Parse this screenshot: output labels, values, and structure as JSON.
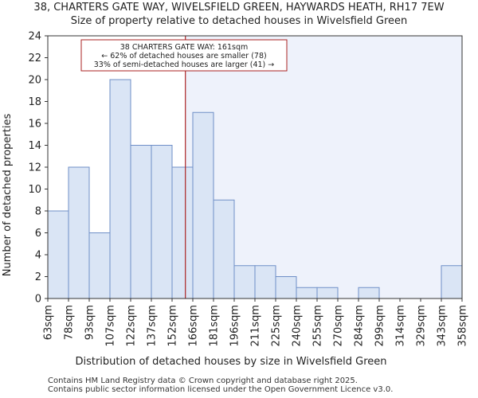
{
  "chart_data": {
    "type": "bar",
    "title_line1": "38, CHARTERS GATE WAY, WIVELSFIELD GREEN, HAYWARDS HEATH, RH17 7EW",
    "title_line2": "Size of property relative to detached houses in Wivelsfield Green",
    "xlabel": "Distribution of detached houses by size in Wivelsfield Green",
    "ylabel": "Number of detached properties",
    "ylim": [
      0,
      24
    ],
    "yticks": [
      0,
      2,
      4,
      6,
      8,
      10,
      12,
      14,
      16,
      18,
      20,
      22,
      24
    ],
    "tick_labels": [
      "63sqm",
      "78sqm",
      "93sqm",
      "107sqm",
      "122sqm",
      "137sqm",
      "152sqm",
      "166sqm",
      "181sqm",
      "196sqm",
      "211sqm",
      "225sqm",
      "240sqm",
      "255sqm",
      "270sqm",
      "284sqm",
      "299sqm",
      "314sqm",
      "329sqm",
      "343sqm",
      "358sqm"
    ],
    "values": [
      8,
      12,
      6,
      20,
      14,
      14,
      12,
      17,
      9,
      3,
      3,
      2,
      1,
      1,
      0,
      1,
      0,
      0,
      0,
      3
    ],
    "marker_value_sqm": 161,
    "annotation": {
      "line1": "38 CHARTERS GATE WAY: 161sqm",
      "line2": "← 62% of detached houses are smaller (78)",
      "line3": "33% of semi-detached houses are larger (41) →"
    },
    "colors": {
      "bar_fill": "#dae5f5",
      "bar_stroke": "#6f8fc7",
      "marker": "#aa2222",
      "plot_bg_right": "#eef2fb"
    }
  },
  "footer": {
    "line1": "Contains HM Land Registry data © Crown copyright and database right 2025.",
    "line2": "Contains public sector information licensed under the Open Government Licence v3.0."
  }
}
